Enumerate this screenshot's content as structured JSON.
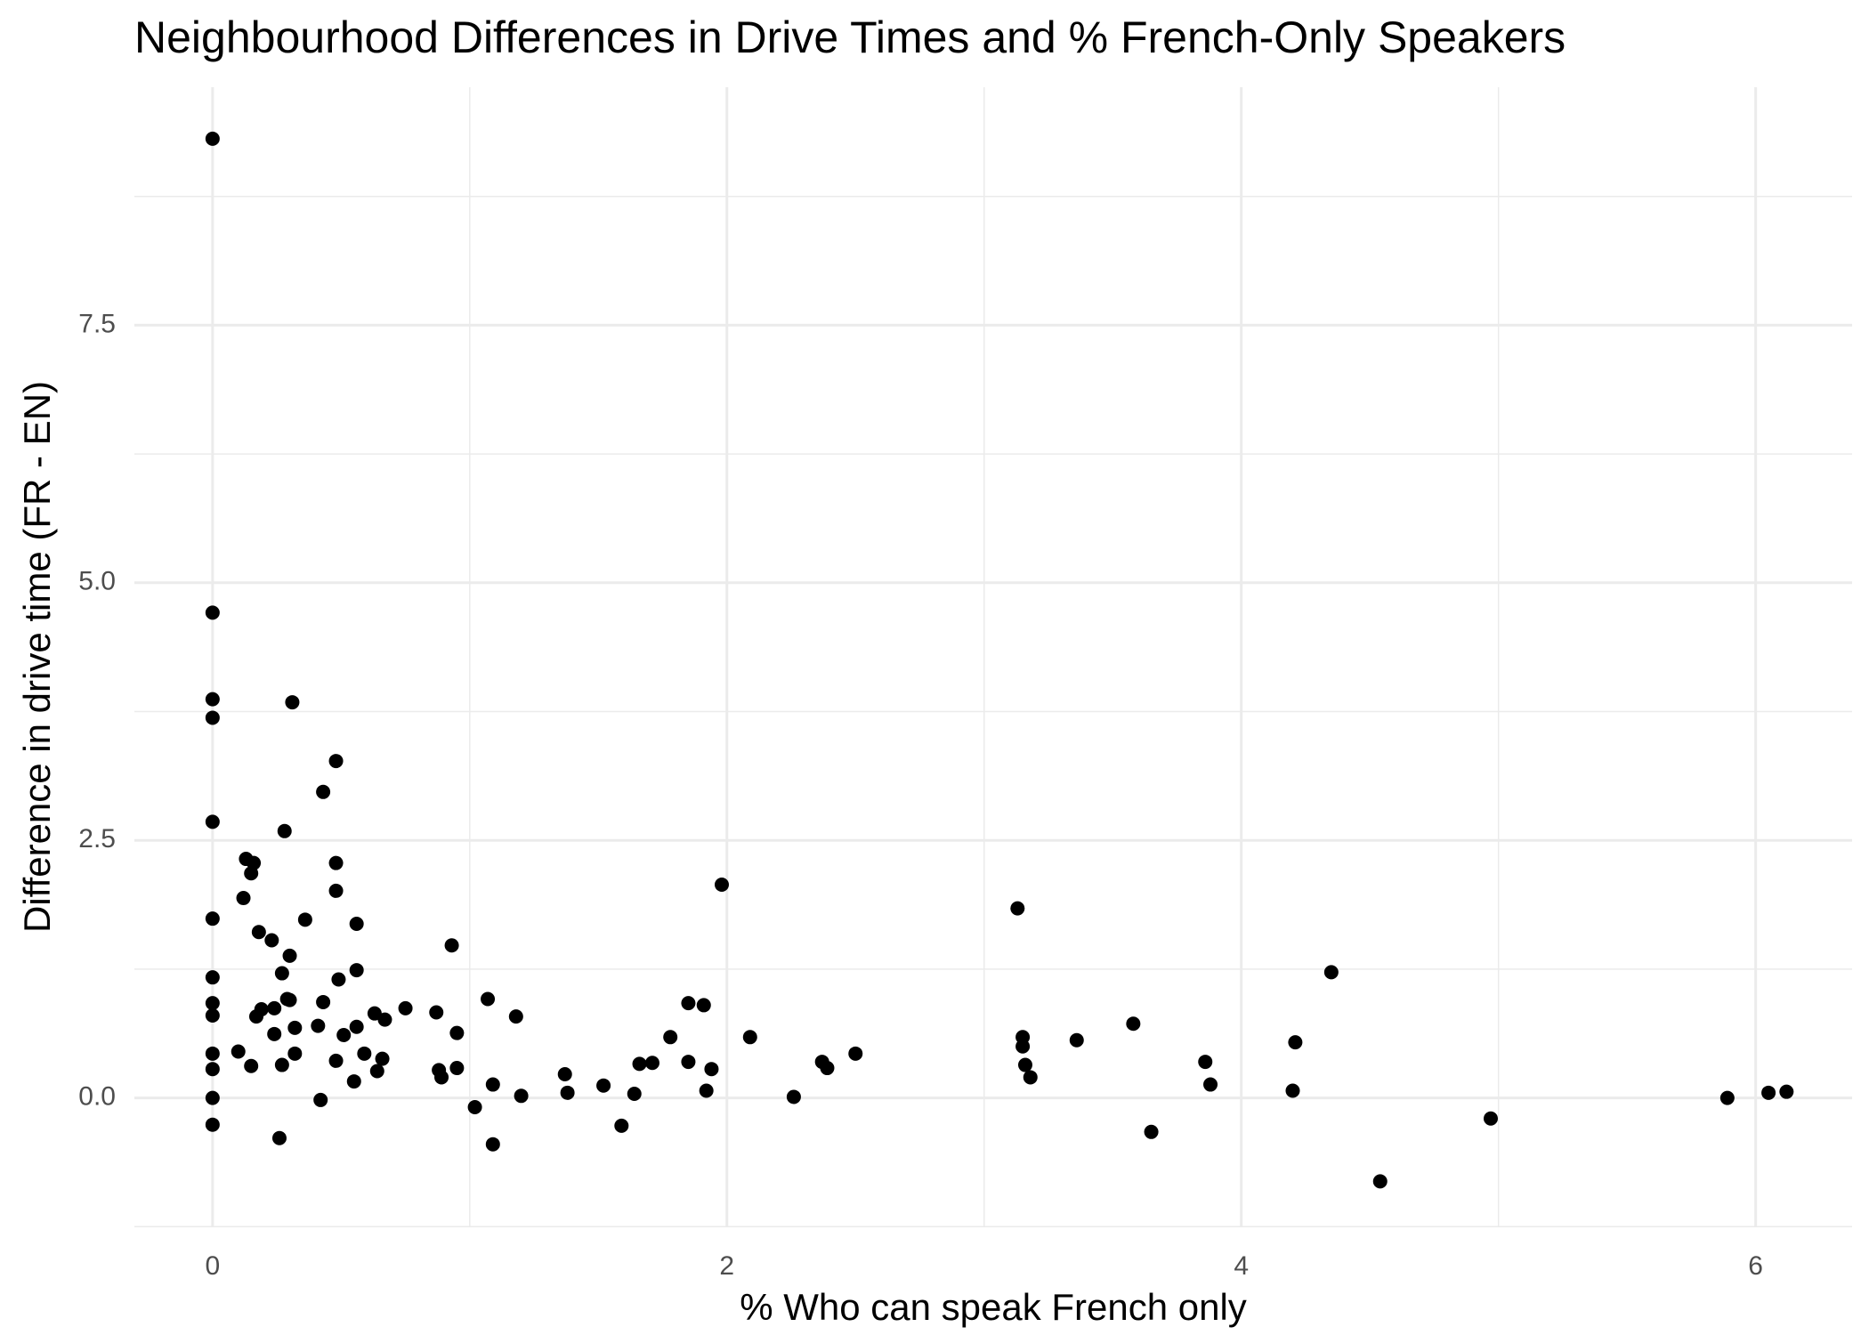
{
  "chart_data": {
    "type": "scatter",
    "title": "Neighbourhood Differences in Drive Times and % French-Only Speakers",
    "xlabel": "% Who can speak French only",
    "ylabel": "Difference in drive time (FR - EN)",
    "color": "#000000",
    "grid": true,
    "xlim": [
      -0.304,
      6.375
    ],
    "ylim": [
      -1.256,
      9.81
    ],
    "xticks": [
      0,
      2,
      4,
      6
    ],
    "yticks": [
      {
        "value": 0,
        "label": "0.0"
      },
      2.5,
      {
        "value": 5,
        "label": "5.0"
      },
      7.5
    ],
    "x": [
      0,
      0,
      0,
      0,
      0,
      0,
      0,
      0,
      0,
      0,
      0,
      0,
      0,
      0.31,
      0.48,
      0.43,
      0.28,
      0.13,
      0.16,
      0.15,
      0.48,
      0.12,
      0.48,
      0.36,
      0.56,
      0.18,
      0.23,
      0.3,
      0.93,
      0.27,
      0.56,
      0.49,
      0.29,
      0.3,
      0.43,
      0.24,
      0.19,
      0.17,
      0.75,
      0.63,
      0.87,
      0.67,
      0.32,
      0.41,
      0.56,
      0.24,
      0.51,
      0.95,
      1.07,
      1.18,
      0.1,
      0.32,
      0.59,
      0.66,
      0.48,
      0.15,
      0.27,
      0.64,
      0.88,
      0.95,
      0.89,
      0.55,
      1.09,
      0.42,
      1.02,
      1.2,
      0.26,
      1.09,
      1.37,
      1.38,
      1.52,
      1.64,
      1.59,
      1.66,
      1.71,
      1.78,
      1.85,
      1.91,
      1.85,
      1.94,
      1.92,
      1.98,
      2.09,
      2.26,
      2.37,
      2.39,
      2.5,
      3.13,
      3.15,
      3.15,
      3.16,
      3.18,
      3.36,
      3.58,
      3.65,
      3.86,
      3.88,
      4.21,
      4.2,
      4.35,
      4.54,
      4.97,
      5.89,
      6.05,
      6.12
    ],
    "y": [
      9.31,
      4.71,
      3.87,
      3.69,
      2.68,
      1.74,
      1.17,
      0.92,
      0.8,
      0.43,
      0.28,
      0,
      -0.26,
      3.84,
      3.27,
      2.97,
      2.59,
      2.32,
      2.28,
      2.18,
      2.28,
      1.94,
      2.01,
      1.73,
      1.69,
      1.61,
      1.53,
      1.38,
      1.48,
      1.21,
      1.24,
      1.15,
      0.96,
      0.95,
      0.93,
      0.87,
      0.86,
      0.79,
      0.87,
      0.82,
      0.83,
      0.76,
      0.68,
      0.7,
      0.69,
      0.62,
      0.61,
      0.63,
      0.96,
      0.79,
      0.45,
      0.43,
      0.43,
      0.38,
      0.36,
      0.31,
      0.32,
      0.26,
      0.27,
      0.29,
      0.2,
      0.16,
      0.13,
      -0.02,
      -0.09,
      0.02,
      -0.39,
      -0.45,
      0.23,
      0.05,
      0.12,
      0.04,
      -0.27,
      0.33,
      0.34,
      0.59,
      0.92,
      0.9,
      0.35,
      0.28,
      0.07,
      2.07,
      0.59,
      0.01,
      0.35,
      0.29,
      0.43,
      1.84,
      0.59,
      0.5,
      0.32,
      0.2,
      0.56,
      0.72,
      -0.33,
      0.35,
      0.13,
      0.54,
      0.07,
      1.22,
      -0.81,
      -0.2,
      0.0,
      0.05,
      0.06
    ]
  }
}
